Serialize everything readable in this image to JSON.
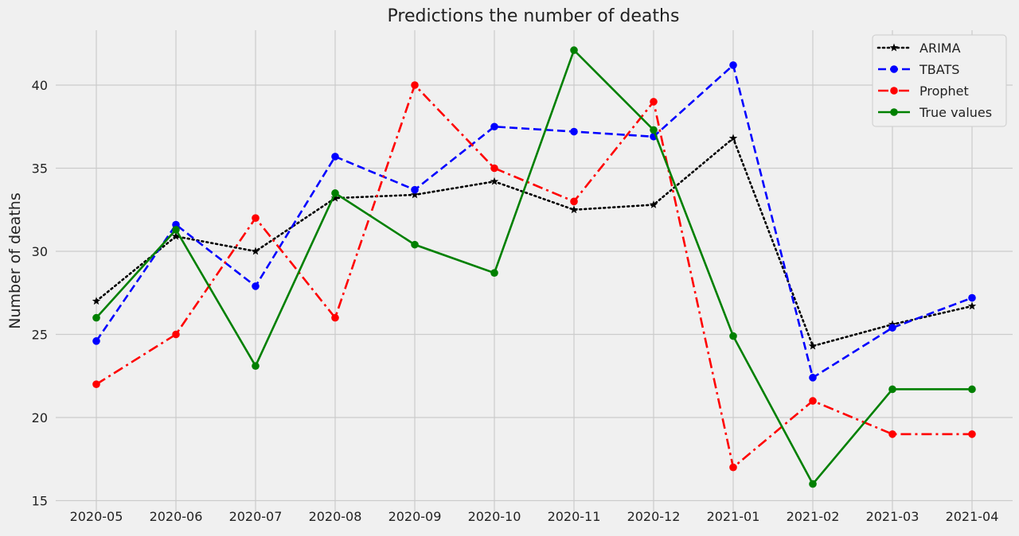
{
  "chart_data": {
    "type": "line",
    "title": "Predictions the number of deaths",
    "xlabel": "",
    "ylabel": "Number of deaths",
    "categories": [
      "2020-05",
      "2020-06",
      "2020-07",
      "2020-08",
      "2020-09",
      "2020-10",
      "2020-11",
      "2020-12",
      "2021-01",
      "2021-02",
      "2021-03",
      "2021-04"
    ],
    "yticks": [
      15,
      20,
      25,
      30,
      35,
      40
    ],
    "ylim": [
      14.5,
      43.5
    ],
    "grid": true,
    "legend_position": "top-right",
    "series": [
      {
        "name": "ARIMA",
        "color": "#000000",
        "linestyle": "dotted",
        "marker": "star",
        "values": [
          27.0,
          30.9,
          30.0,
          33.2,
          33.4,
          34.2,
          32.5,
          32.8,
          36.8,
          24.3,
          25.6,
          26.7
        ]
      },
      {
        "name": "TBATS",
        "color": "#0000ff",
        "linestyle": "dashed",
        "marker": "circle",
        "values": [
          24.6,
          31.6,
          27.9,
          35.7,
          33.7,
          37.5,
          37.2,
          36.9,
          41.2,
          22.4,
          25.4,
          27.2
        ]
      },
      {
        "name": "Prophet",
        "color": "#ff0000",
        "linestyle": "dashdot",
        "marker": "circle",
        "values": [
          22.0,
          25.0,
          32.0,
          26.0,
          40.0,
          35.0,
          33.0,
          39.0,
          17.0,
          21.0,
          19.0,
          19.0
        ]
      },
      {
        "name": "True values",
        "color": "#008000",
        "linestyle": "solid",
        "marker": "circle",
        "values": [
          26.0,
          31.3,
          23.1,
          33.5,
          30.4,
          28.7,
          42.1,
          37.3,
          24.9,
          16.0,
          21.7,
          21.7
        ]
      }
    ]
  }
}
